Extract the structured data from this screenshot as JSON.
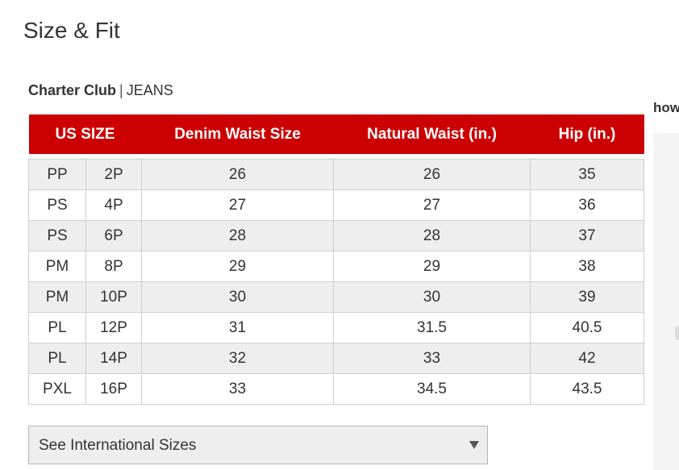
{
  "page": {
    "title": "Size & Fit"
  },
  "brand_line": {
    "brand": "Charter Club",
    "separator": "|",
    "category": "JEANS"
  },
  "side_panel": {
    "text": "how"
  },
  "colors": {
    "header_bg": "#cc0000",
    "header_text": "#ffffff",
    "row_shade": "#eeeeee"
  },
  "size_table": {
    "headers": [
      "US SIZE",
      "Denim Waist Size",
      "Natural Waist (in.)",
      "Hip (in.)"
    ],
    "rows": [
      [
        "PP",
        "2P",
        "26",
        "26",
        "35"
      ],
      [
        "PS",
        "4P",
        "27",
        "27",
        "36"
      ],
      [
        "PS",
        "6P",
        "28",
        "28",
        "37"
      ],
      [
        "PM",
        "8P",
        "29",
        "29",
        "38"
      ],
      [
        "PM",
        "10P",
        "30",
        "30",
        "39"
      ],
      [
        "PL",
        "12P",
        "31",
        "31.5",
        "40.5"
      ],
      [
        "PL",
        "14P",
        "32",
        "33",
        "42"
      ],
      [
        "PXL",
        "16P",
        "33",
        "34.5",
        "43.5"
      ]
    ]
  },
  "international": {
    "label": "See International Sizes",
    "icon": "chevron-down-icon"
  }
}
